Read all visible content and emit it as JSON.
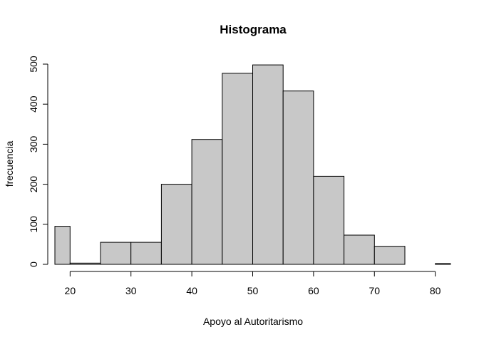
{
  "chart_data": {
    "type": "histogram",
    "title": "Histograma",
    "xlabel": "Apoyo al Autoritarismo",
    "ylabel": "frecuencia",
    "bin_edges": [
      15,
      20,
      25,
      30,
      35,
      40,
      45,
      50,
      55,
      60,
      65,
      70,
      75,
      80,
      85
    ],
    "values": [
      95,
      3,
      55,
      55,
      200,
      312,
      477,
      498,
      433,
      220,
      73,
      45,
      0,
      2
    ],
    "x_ticks": [
      20,
      30,
      40,
      50,
      60,
      70,
      80
    ],
    "y_ticks": [
      0,
      100,
      200,
      300,
      400,
      500
    ],
    "xlim": [
      17.5,
      82.5
    ],
    "ylim": [
      0,
      500
    ],
    "grid": false,
    "bar_color": "#c8c8c8",
    "edge_color": "#000000"
  }
}
